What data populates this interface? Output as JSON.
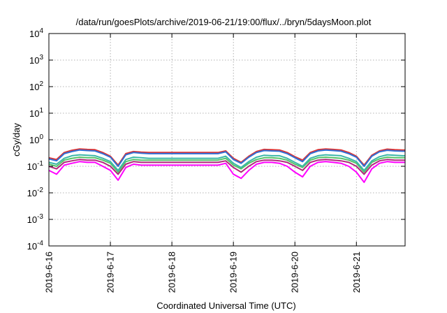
{
  "chart_data": {
    "type": "line",
    "title": "/data/run/goesPlots/archive/2019-06-21/19:00/flux/../bryn/5daysMoon.plot",
    "xlabel": "Coordinated Universal Time (UTC)",
    "ylabel": "cGy/day",
    "y_scale": "log",
    "ylim": [
      0.0001,
      10000
    ],
    "y_ticks": [
      {
        "value": 0.0001,
        "base": "10",
        "exp": "-4"
      },
      {
        "value": 0.001,
        "base": "10",
        "exp": "-3"
      },
      {
        "value": 0.01,
        "base": "10",
        "exp": "-2"
      },
      {
        "value": 0.1,
        "base": "10",
        "exp": "-1"
      },
      {
        "value": 1,
        "base": "10",
        "exp": "0"
      },
      {
        "value": 10,
        "base": "10",
        "exp": "1"
      },
      {
        "value": 100,
        "base": "10",
        "exp": "2"
      },
      {
        "value": 1000,
        "base": "10",
        "exp": "3"
      },
      {
        "value": 10000,
        "base": "10",
        "exp": "4"
      }
    ],
    "x_ticks": [
      "2019-6-16",
      "2019-6-17",
      "2019-6-18",
      "2019-6-19",
      "2019-6-20",
      "2019-6-21"
    ],
    "xlim": [
      "2019-6-16 00:00",
      "2019-6-21 19:00"
    ],
    "grid": true,
    "x": [
      "2019-6-16 00:00",
      "2019-6-16 03:00",
      "2019-6-16 06:00",
      "2019-6-16 09:00",
      "2019-6-16 12:00",
      "2019-6-16 15:00",
      "2019-6-16 18:00",
      "2019-6-16 21:00",
      "2019-6-17 00:00",
      "2019-6-17 03:00",
      "2019-6-17 06:00",
      "2019-6-17 09:00",
      "2019-6-17 12:00",
      "2019-6-17 15:00",
      "2019-6-17 18:00",
      "2019-6-17 21:00",
      "2019-6-18 00:00",
      "2019-6-18 03:00",
      "2019-6-18 06:00",
      "2019-6-18 09:00",
      "2019-6-18 12:00",
      "2019-6-18 15:00",
      "2019-6-18 18:00",
      "2019-6-18 21:00",
      "2019-6-19 00:00",
      "2019-6-19 03:00",
      "2019-6-19 06:00",
      "2019-6-19 09:00",
      "2019-6-19 12:00",
      "2019-6-19 15:00",
      "2019-6-19 18:00",
      "2019-6-19 21:00",
      "2019-6-20 00:00",
      "2019-6-20 03:00",
      "2019-6-20 06:00",
      "2019-6-20 09:00",
      "2019-6-20 12:00",
      "2019-6-20 15:00",
      "2019-6-20 18:00",
      "2019-6-20 21:00",
      "2019-6-21 00:00",
      "2019-6-21 03:00",
      "2019-6-21 06:00",
      "2019-6-21 09:00",
      "2019-6-21 12:00",
      "2019-6-21 15:00",
      "2019-6-21 18:00",
      "2019-6-21 19:00"
    ],
    "series": [
      {
        "color": "#2f6fd6",
        "values": [
          0.19,
          0.16,
          0.3,
          0.36,
          0.41,
          0.39,
          0.38,
          0.3,
          0.22,
          0.1,
          0.27,
          0.33,
          0.31,
          0.3,
          0.3,
          0.3,
          0.3,
          0.3,
          0.3,
          0.3,
          0.3,
          0.3,
          0.3,
          0.35,
          0.18,
          0.13,
          0.22,
          0.33,
          0.39,
          0.38,
          0.37,
          0.3,
          0.21,
          0.15,
          0.3,
          0.38,
          0.41,
          0.39,
          0.37,
          0.3,
          0.22,
          0.1,
          0.24,
          0.35,
          0.4,
          0.38,
          0.37,
          0.37
        ]
      },
      {
        "color": "#dd3333",
        "values": [
          0.21,
          0.18,
          0.33,
          0.4,
          0.45,
          0.43,
          0.42,
          0.33,
          0.24,
          0.11,
          0.3,
          0.36,
          0.34,
          0.33,
          0.33,
          0.33,
          0.33,
          0.33,
          0.33,
          0.33,
          0.33,
          0.33,
          0.33,
          0.38,
          0.2,
          0.14,
          0.24,
          0.36,
          0.43,
          0.42,
          0.41,
          0.33,
          0.23,
          0.17,
          0.33,
          0.42,
          0.45,
          0.43,
          0.41,
          0.33,
          0.24,
          0.11,
          0.26,
          0.38,
          0.44,
          0.42,
          0.41,
          0.41
        ]
      },
      {
        "color": "#3bb7a8",
        "values": [
          0.14,
          0.12,
          0.2,
          0.25,
          0.27,
          0.26,
          0.25,
          0.2,
          0.15,
          0.07,
          0.18,
          0.22,
          0.21,
          0.2,
          0.2,
          0.2,
          0.2,
          0.2,
          0.2,
          0.2,
          0.2,
          0.2,
          0.2,
          0.24,
          0.13,
          0.09,
          0.15,
          0.22,
          0.26,
          0.25,
          0.25,
          0.2,
          0.14,
          0.1,
          0.2,
          0.25,
          0.27,
          0.26,
          0.25,
          0.2,
          0.15,
          0.07,
          0.16,
          0.23,
          0.27,
          0.26,
          0.25,
          0.25
        ]
      },
      {
        "color": "#55c26a",
        "values": [
          0.12,
          0.1,
          0.17,
          0.2,
          0.22,
          0.21,
          0.21,
          0.17,
          0.13,
          0.06,
          0.15,
          0.18,
          0.17,
          0.17,
          0.17,
          0.17,
          0.17,
          0.17,
          0.17,
          0.17,
          0.17,
          0.17,
          0.17,
          0.2,
          0.11,
          0.08,
          0.13,
          0.18,
          0.21,
          0.21,
          0.2,
          0.17,
          0.12,
          0.09,
          0.17,
          0.21,
          0.22,
          0.21,
          0.2,
          0.17,
          0.13,
          0.06,
          0.14,
          0.19,
          0.22,
          0.21,
          0.21,
          0.21
        ]
      },
      {
        "color": "#b02a7a",
        "values": [
          0.1,
          0.08,
          0.14,
          0.16,
          0.18,
          0.17,
          0.17,
          0.14,
          0.1,
          0.05,
          0.12,
          0.15,
          0.14,
          0.14,
          0.14,
          0.14,
          0.14,
          0.14,
          0.14,
          0.14,
          0.14,
          0.14,
          0.14,
          0.16,
          0.09,
          0.06,
          0.1,
          0.15,
          0.17,
          0.17,
          0.16,
          0.14,
          0.1,
          0.07,
          0.14,
          0.17,
          0.18,
          0.17,
          0.16,
          0.14,
          0.1,
          0.05,
          0.11,
          0.16,
          0.18,
          0.17,
          0.17,
          0.17
        ]
      },
      {
        "color": "#ff00ff",
        "values": [
          0.07,
          0.05,
          0.11,
          0.13,
          0.15,
          0.14,
          0.14,
          0.1,
          0.07,
          0.03,
          0.09,
          0.12,
          0.11,
          0.11,
          0.11,
          0.11,
          0.11,
          0.11,
          0.11,
          0.11,
          0.11,
          0.11,
          0.11,
          0.13,
          0.05,
          0.035,
          0.07,
          0.12,
          0.14,
          0.14,
          0.13,
          0.1,
          0.06,
          0.04,
          0.1,
          0.14,
          0.15,
          0.14,
          0.13,
          0.1,
          0.06,
          0.025,
          0.08,
          0.13,
          0.15,
          0.14,
          0.14,
          0.14
        ]
      }
    ]
  }
}
